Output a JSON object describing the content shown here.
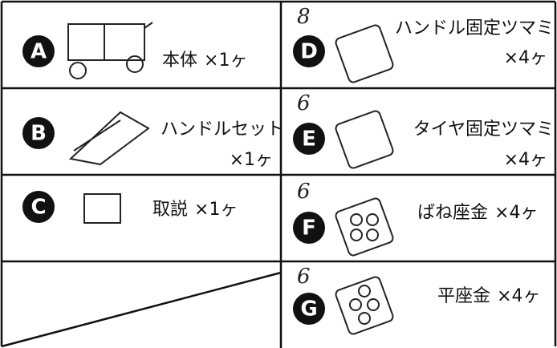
{
  "parts": [
    {
      "letter": "A",
      "name": "本体",
      "qty": "×1ヶ"
    },
    {
      "letter": "B",
      "name": "ハンドルセット",
      "qty": "×1ヶ"
    },
    {
      "letter": "C",
      "name": "取説",
      "qty": "×1ヶ"
    },
    {
      "letter": "D",
      "name": "ハンドル固定ツマミ",
      "qty": "×4ヶ",
      "note": "8"
    },
    {
      "letter": "E",
      "name": "タイヤ固定ツマミ",
      "qty": "×4ヶ",
      "note": "6"
    },
    {
      "letter": "F",
      "name": "ばね座金",
      "qty": "×4ヶ",
      "note": "6"
    },
    {
      "letter": "G",
      "name": "平座金",
      "qty": "×4ヶ",
      "note": "6"
    }
  ]
}
